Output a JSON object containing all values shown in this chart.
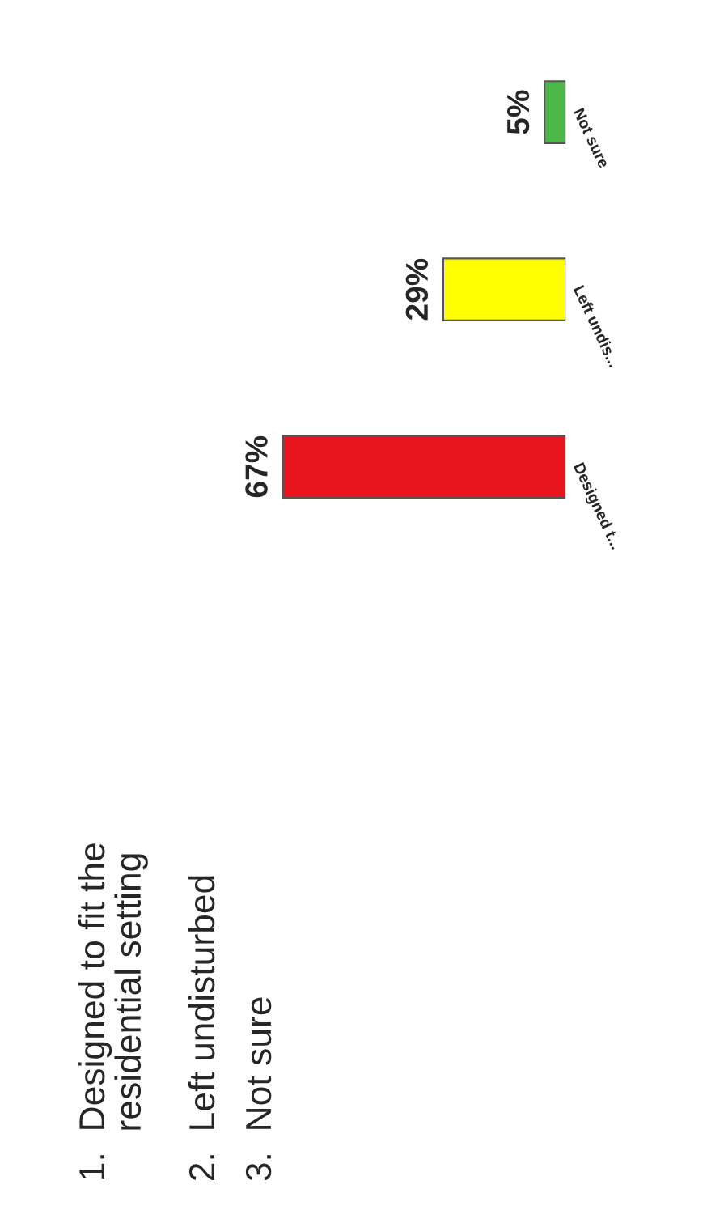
{
  "chart_data": {
    "type": "bar",
    "orientation": "horizontal",
    "categories": [
      "Not sure",
      "Left undis...",
      "Designed t..."
    ],
    "values": [
      5,
      29,
      67
    ],
    "colors": [
      "#4cb848",
      "#ffff00",
      "#e8141b"
    ],
    "value_labels": [
      "5%",
      "29%",
      "67%"
    ],
    "tick_labels": "y",
    "grid": false,
    "legend": false,
    "annotations": [
      "1.  Designed to fit the\n     residential setting",
      "2.  Left undisturbed",
      "3.  Not sure"
    ]
  }
}
